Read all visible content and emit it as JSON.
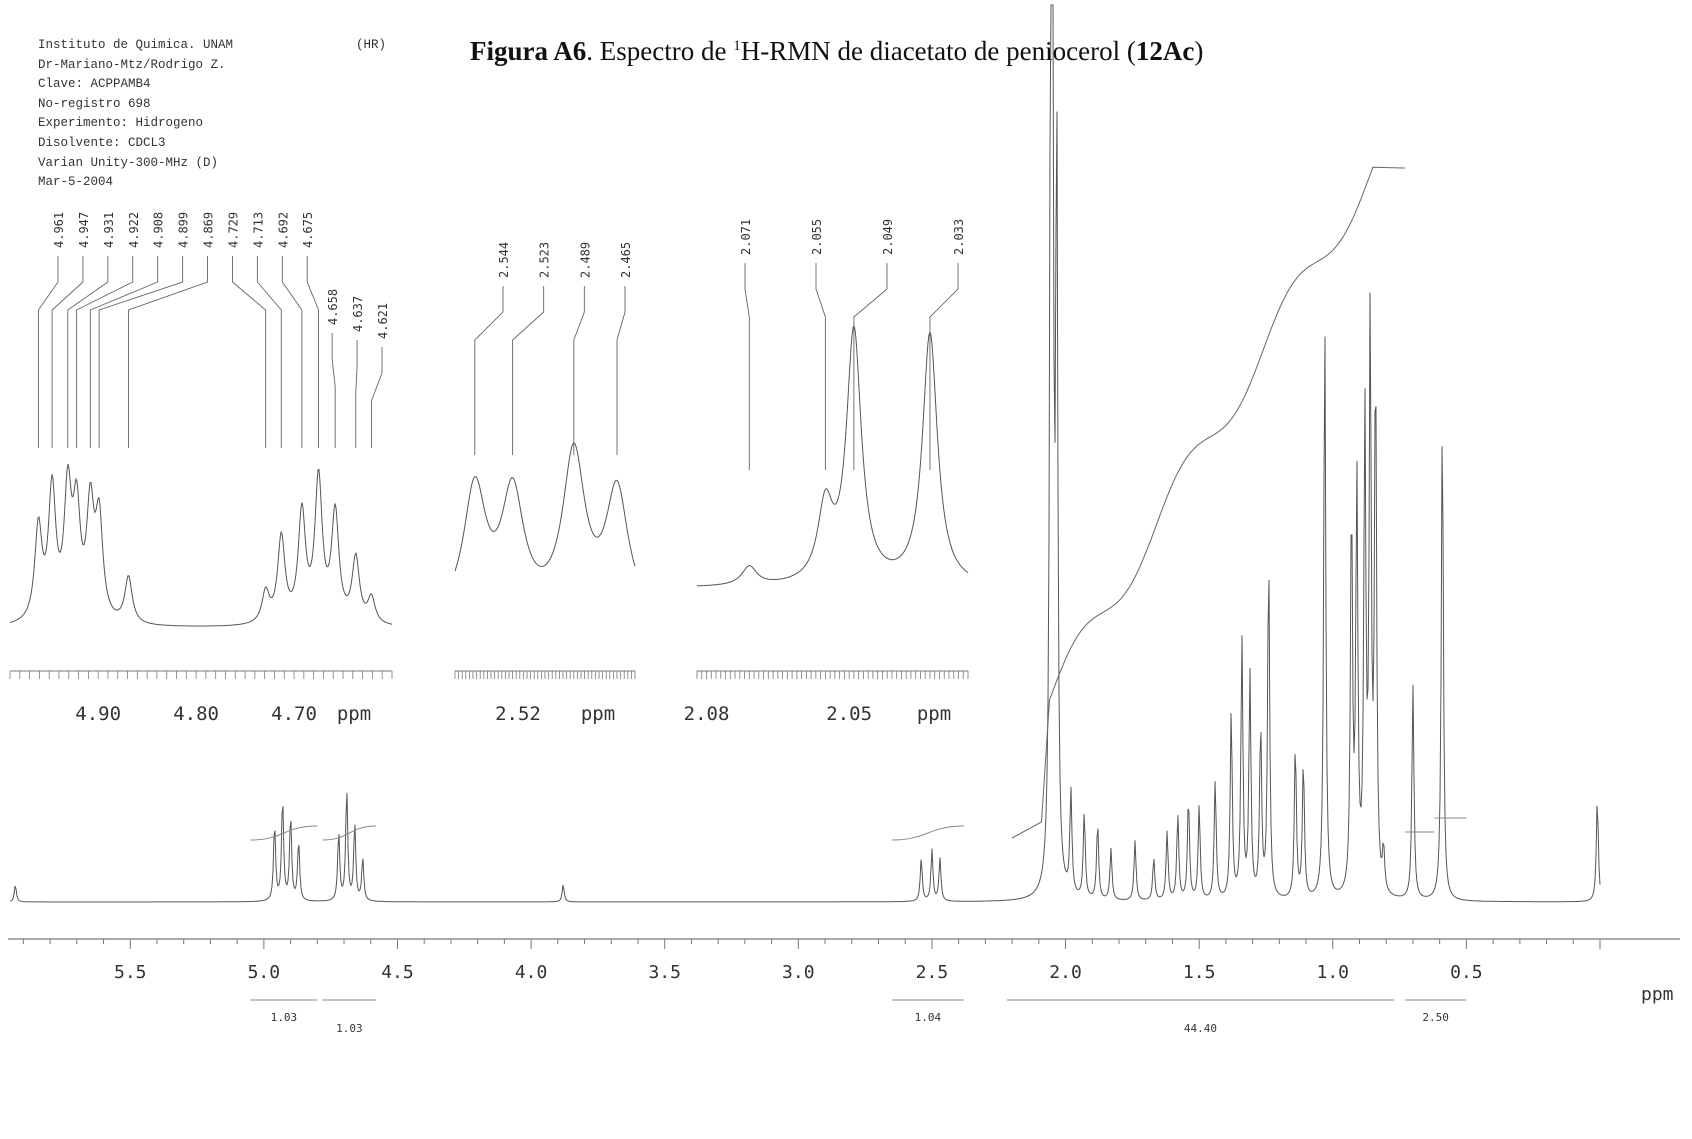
{
  "header": {
    "lines": [
      "Instituto de Quimica. UNAM",
      "Dr-Mariano-Mtz/Rodrigo Z.",
      "Clave: ACPPAMB4",
      "No-registro 698",
      "Experimento: Hidrogeno",
      "Disolvente: CDCL3",
      "Varian Unity-300-MHz (D)",
      "Mar-5-2004"
    ],
    "tag": "(HR)"
  },
  "title": {
    "prefix": "Figura A6",
    "mid": ". Espectro de ",
    "sup": "1",
    "nucleus": "H-RMN de diacetato de peniocerol (",
    "compound": "12Ac",
    "suffix": ")"
  },
  "chart_data": [
    {
      "type": "line",
      "name": "main",
      "xlabel": "ppm",
      "xlim": [
        5.95,
        0.0
      ],
      "reversed_x": true,
      "tick_labels": [
        "5.5",
        "5.0",
        "4.5",
        "4.0",
        "3.5",
        "3.0",
        "2.5",
        "2.0",
        "1.5",
        "1.0",
        "0.5"
      ],
      "peaks": [
        {
          "x": 5.93,
          "h": 0.02
        },
        {
          "x": 4.96,
          "h": 0.09
        },
        {
          "x": 4.93,
          "h": 0.12
        },
        {
          "x": 4.9,
          "h": 0.1
        },
        {
          "x": 4.87,
          "h": 0.07
        },
        {
          "x": 4.72,
          "h": 0.08
        },
        {
          "x": 4.69,
          "h": 0.13
        },
        {
          "x": 4.66,
          "h": 0.09
        },
        {
          "x": 4.63,
          "h": 0.05
        },
        {
          "x": 3.88,
          "h": 0.02
        },
        {
          "x": 2.54,
          "h": 0.05
        },
        {
          "x": 2.5,
          "h": 0.06
        },
        {
          "x": 2.47,
          "h": 0.05
        },
        {
          "x": 2.055,
          "h": 1.0
        },
        {
          "x": 2.049,
          "h": 0.96
        },
        {
          "x": 2.033,
          "h": 0.86
        },
        {
          "x": 1.98,
          "h": 0.12
        },
        {
          "x": 1.93,
          "h": 0.1
        },
        {
          "x": 1.88,
          "h": 0.09
        },
        {
          "x": 1.83,
          "h": 0.06
        },
        {
          "x": 1.74,
          "h": 0.07
        },
        {
          "x": 1.67,
          "h": 0.05
        },
        {
          "x": 1.62,
          "h": 0.08
        },
        {
          "x": 1.58,
          "h": 0.1
        },
        {
          "x": 1.54,
          "h": 0.12
        },
        {
          "x": 1.5,
          "h": 0.11
        },
        {
          "x": 1.44,
          "h": 0.14
        },
        {
          "x": 1.38,
          "h": 0.22
        },
        {
          "x": 1.34,
          "h": 0.3
        },
        {
          "x": 1.31,
          "h": 0.26
        },
        {
          "x": 1.27,
          "h": 0.2
        },
        {
          "x": 1.24,
          "h": 0.4
        },
        {
          "x": 1.14,
          "h": 0.18
        },
        {
          "x": 1.11,
          "h": 0.16
        },
        {
          "x": 1.03,
          "h": 0.68
        },
        {
          "x": 0.93,
          "h": 0.46
        },
        {
          "x": 0.91,
          "h": 0.48
        },
        {
          "x": 0.88,
          "h": 0.55
        },
        {
          "x": 0.86,
          "h": 0.66
        },
        {
          "x": 0.84,
          "h": 0.62
        },
        {
          "x": 0.81,
          "h": 0.05
        },
        {
          "x": 0.7,
          "h": 0.25
        },
        {
          "x": 0.59,
          "h": 0.57
        },
        {
          "x": 0.01,
          "h": 0.12
        }
      ],
      "integrals": [
        {
          "from": 5.05,
          "to": 4.8,
          "value": "1.03"
        },
        {
          "from": 4.78,
          "to": 4.58,
          "value": "1.03"
        },
        {
          "from": 2.65,
          "to": 2.38,
          "value": "1.04"
        },
        {
          "from": 2.22,
          "to": 0.77,
          "value": "44.40"
        },
        {
          "from": 0.73,
          "to": 0.5,
          "value": "2.50"
        }
      ]
    },
    {
      "type": "line",
      "name": "inset-1",
      "xlabel": "ppm",
      "xlim": [
        4.99,
        4.6
      ],
      "tick_labels": [
        "4.90",
        "4.80",
        "4.70"
      ],
      "peak_labels": [
        "4.961",
        "4.947",
        "4.931",
        "4.922",
        "4.908",
        "4.899",
        "4.869",
        "4.729",
        "4.713",
        "4.692",
        "4.675",
        "4.658",
        "4.637",
        "4.621"
      ],
      "peaks": [
        {
          "x": 4.961,
          "h": 0.36
        },
        {
          "x": 4.947,
          "h": 0.5
        },
        {
          "x": 4.931,
          "h": 0.48
        },
        {
          "x": 4.922,
          "h": 0.4
        },
        {
          "x": 4.908,
          "h": 0.42
        },
        {
          "x": 4.899,
          "h": 0.38
        },
        {
          "x": 4.869,
          "h": 0.18
        },
        {
          "x": 4.729,
          "h": 0.12
        },
        {
          "x": 4.713,
          "h": 0.33
        },
        {
          "x": 4.692,
          "h": 0.42
        },
        {
          "x": 4.675,
          "h": 0.55
        },
        {
          "x": 4.658,
          "h": 0.42
        },
        {
          "x": 4.637,
          "h": 0.25
        },
        {
          "x": 4.621,
          "h": 0.1
        }
      ]
    },
    {
      "type": "line",
      "name": "inset-2",
      "xlabel": "ppm",
      "xlim": [
        2.555,
        2.455
      ],
      "tick_labels": [
        "2.52"
      ],
      "peak_labels": [
        "2.544",
        "2.523",
        "2.489",
        "2.465"
      ],
      "peaks": [
        {
          "x": 2.544,
          "h": 0.7
        },
        {
          "x": 2.523,
          "h": 0.66
        },
        {
          "x": 2.489,
          "h": 0.88
        },
        {
          "x": 2.465,
          "h": 0.68
        }
      ]
    },
    {
      "type": "line",
      "name": "inset-3",
      "xlabel": "ppm",
      "xlim": [
        2.082,
        2.025
      ],
      "tick_labels": [
        "2.08",
        "2.05"
      ],
      "peak_labels": [
        "2.071",
        "2.055",
        "2.049",
        "2.033"
      ],
      "peaks": [
        {
          "x": 2.071,
          "h": 0.18
        },
        {
          "x": 2.055,
          "h": 0.7
        },
        {
          "x": 2.049,
          "h": 2.4
        },
        {
          "x": 2.033,
          "h": 2.4
        }
      ]
    }
  ]
}
